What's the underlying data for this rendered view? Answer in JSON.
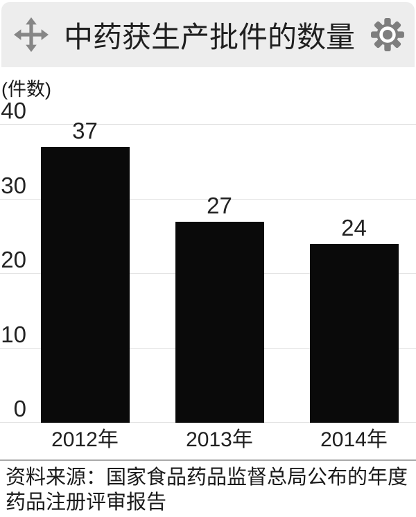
{
  "header": {
    "title": "中药获生产批件的数量",
    "icons": {
      "left": "move-icon",
      "right": "gear-icon"
    }
  },
  "chart": {
    "unit_label": "(件数)"
  },
  "source": {
    "lines": [
      "资料来源：国家食品药品监督总局公布的年度",
      "药品注册评审报告"
    ]
  },
  "colors": {
    "header_bg": "#ededed",
    "icon": "#868686",
    "bar": "#0a0a0a",
    "gridline": "#e3e3e3",
    "text": "#1f1f1f",
    "divider": "#a9a9a9"
  },
  "chart_data": {
    "type": "bar",
    "title": "中药获生产批件的数量",
    "ylabel": "(件数)",
    "xlabel": "",
    "categories": [
      "2012年",
      "2013年",
      "2014年"
    ],
    "values": [
      37,
      27,
      24
    ],
    "ylim": [
      0,
      40
    ],
    "yticks": [
      0,
      10,
      20,
      30,
      40
    ],
    "grid": true,
    "legend": false,
    "bar_color": "#0a0a0a",
    "source": "资料来源：国家食品药品监督总局公布的年度药品注册评审报告"
  }
}
